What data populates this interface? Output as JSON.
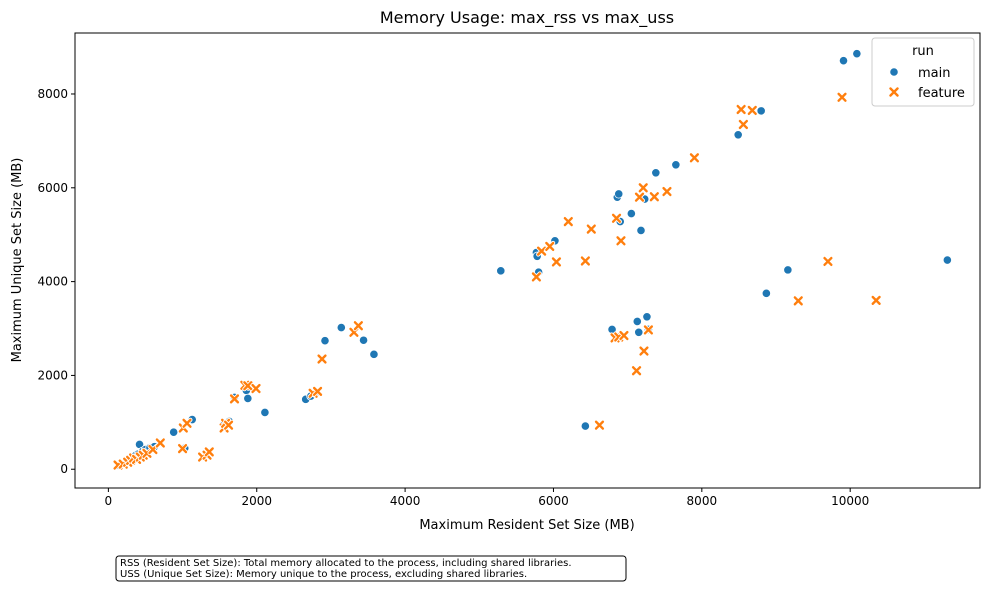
{
  "chart_data": {
    "type": "scatter",
    "title": "Memory Usage: max_rss vs max_uss",
    "xlabel": "Maximum Resident Set Size (MB)",
    "ylabel": "Maximum Unique Set Size (MB)",
    "xlim": [
      -450,
      11750
    ],
    "ylim": [
      -400,
      9300
    ],
    "xticks": [
      0,
      2000,
      4000,
      6000,
      8000,
      10000
    ],
    "yticks": [
      0,
      2000,
      4000,
      6000,
      8000
    ],
    "xtick_labels": [
      "0",
      "2000",
      "4000",
      "6000",
      "8000",
      "10000"
    ],
    "ytick_labels": [
      "0",
      "2000",
      "4000",
      "6000",
      "8000"
    ],
    "grid": false,
    "legend": {
      "title": "run",
      "placement": "top-right"
    },
    "series": [
      {
        "name": "main",
        "marker": "circle",
        "color": "#1f77b4",
        "points": [
          [
            150,
            80
          ],
          [
            220,
            130
          ],
          [
            270,
            180
          ],
          [
            300,
            220
          ],
          [
            330,
            260
          ],
          [
            370,
            300
          ],
          [
            400,
            320
          ],
          [
            420,
            530
          ],
          [
            460,
            380
          ],
          [
            500,
            420
          ],
          [
            560,
            460
          ],
          [
            620,
            480
          ],
          [
            880,
            790
          ],
          [
            1030,
            450
          ],
          [
            1130,
            1060
          ],
          [
            1560,
            960
          ],
          [
            1630,
            1020
          ],
          [
            1700,
            1530
          ],
          [
            1860,
            1680
          ],
          [
            1880,
            1510
          ],
          [
            2110,
            1210
          ],
          [
            2660,
            1490
          ],
          [
            2730,
            1560
          ],
          [
            2790,
            1620
          ],
          [
            2920,
            2740
          ],
          [
            3140,
            3020
          ],
          [
            3440,
            2750
          ],
          [
            3580,
            2450
          ],
          [
            5290,
            4230
          ],
          [
            5770,
            4620
          ],
          [
            5780,
            4540
          ],
          [
            5800,
            4200
          ],
          [
            6020,
            4870
          ],
          [
            6430,
            920
          ],
          [
            6790,
            2980
          ],
          [
            6860,
            5800
          ],
          [
            6880,
            5870
          ],
          [
            6900,
            5280
          ],
          [
            7050,
            5450
          ],
          [
            7130,
            3150
          ],
          [
            7150,
            2920
          ],
          [
            7180,
            5090
          ],
          [
            7230,
            5760
          ],
          [
            7260,
            3250
          ],
          [
            7280,
            2980
          ],
          [
            7380,
            6320
          ],
          [
            7650,
            6490
          ],
          [
            8490,
            7130
          ],
          [
            8800,
            7640
          ],
          [
            8870,
            3750
          ],
          [
            9160,
            4250
          ],
          [
            9910,
            8710
          ],
          [
            10090,
            8860
          ],
          [
            11310,
            4460
          ]
        ]
      },
      {
        "name": "feature",
        "marker": "x",
        "color": "#ff7f0e",
        "points": [
          [
            130,
            90
          ],
          [
            200,
            110
          ],
          [
            260,
            150
          ],
          [
            300,
            190
          ],
          [
            340,
            240
          ],
          [
            380,
            210
          ],
          [
            430,
            260
          ],
          [
            470,
            300
          ],
          [
            520,
            340
          ],
          [
            600,
            420
          ],
          [
            700,
            560
          ],
          [
            1000,
            440
          ],
          [
            1010,
            880
          ],
          [
            1060,
            980
          ],
          [
            1270,
            260
          ],
          [
            1330,
            300
          ],
          [
            1360,
            370
          ],
          [
            1560,
            880
          ],
          [
            1580,
            980
          ],
          [
            1620,
            940
          ],
          [
            1700,
            1500
          ],
          [
            1840,
            1790
          ],
          [
            1880,
            1780
          ],
          [
            1990,
            1720
          ],
          [
            2760,
            1620
          ],
          [
            2820,
            1660
          ],
          [
            2880,
            2350
          ],
          [
            3310,
            2920
          ],
          [
            3370,
            3060
          ],
          [
            5770,
            4100
          ],
          [
            5840,
            4650
          ],
          [
            5950,
            4750
          ],
          [
            6040,
            4420
          ],
          [
            6200,
            5280
          ],
          [
            6430,
            4440
          ],
          [
            6510,
            5120
          ],
          [
            6620,
            940
          ],
          [
            6830,
            2800
          ],
          [
            6850,
            5350
          ],
          [
            6880,
            2820
          ],
          [
            6910,
            4870
          ],
          [
            6950,
            2850
          ],
          [
            7120,
            2100
          ],
          [
            7160,
            5800
          ],
          [
            7210,
            6000
          ],
          [
            7220,
            2520
          ],
          [
            7280,
            2970
          ],
          [
            7360,
            5810
          ],
          [
            7530,
            5920
          ],
          [
            7900,
            6640
          ],
          [
            8530,
            7670
          ],
          [
            8560,
            7350
          ],
          [
            8680,
            7650
          ],
          [
            9300,
            3590
          ],
          [
            9700,
            4430
          ],
          [
            9890,
            7930
          ],
          [
            10350,
            3600
          ]
        ]
      }
    ]
  },
  "annotation": {
    "lines": [
      "RSS (Resident Set Size): Total memory allocated to the process, including shared libraries.",
      "USS (Unique Set Size): Memory unique to the process, excluding shared libraries."
    ]
  }
}
